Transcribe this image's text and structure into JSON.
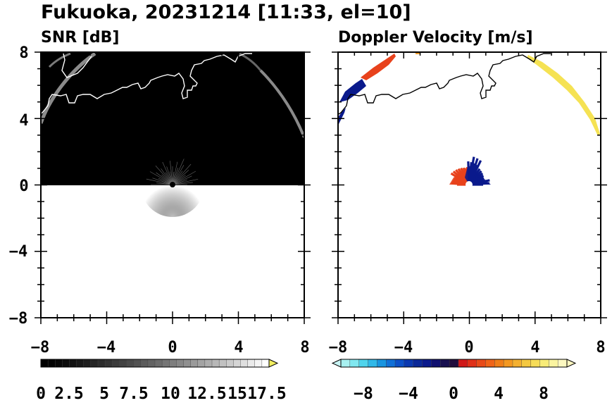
{
  "figure": {
    "title": "Fukuoka, 20231214 [11:33, el=10]"
  },
  "colors": {
    "coastline_on_dark": "#ffffff",
    "coastline_on_light": "#000000",
    "snr_background": "#000000",
    "doppler_negative": "#0a1a8c",
    "doppler_positive": "#e8421c",
    "doppler_far": "#f4e04a"
  },
  "chart_data": [
    {
      "type": "heatmap",
      "title": "SNR [dB]",
      "xlabel": "",
      "ylabel": "",
      "xlim": [
        -8,
        8
      ],
      "ylim": [
        -8,
        8
      ],
      "x_ticks": [
        "−8",
        "−4",
        "0",
        "4",
        "8"
      ],
      "y_ticks": [
        "8",
        "4",
        "0",
        "−4",
        "−8"
      ],
      "grid": false,
      "data_region": "northern half-plane (y ≥ 0) filled with low SNR, bright arc clutter",
      "colorbar": {
        "colormap": "grayscale",
        "range": [
          0,
          20
        ],
        "ticks": [
          "0",
          "2.5",
          "5",
          "7.5",
          "10",
          "12.5",
          "15",
          "17.5"
        ],
        "extend": "max"
      }
    },
    {
      "type": "heatmap",
      "title": "Doppler Velocity [m/s]",
      "xlabel": "",
      "ylabel": "",
      "xlim": [
        -8,
        8
      ],
      "ylim": [
        -8,
        8
      ],
      "x_ticks": [
        "−8",
        "−4",
        "0",
        "4",
        "8"
      ],
      "y_ticks": [],
      "grid": false,
      "colorbar": {
        "colormap": "blue-white-red-yellow diverging",
        "range": [
          -10,
          10
        ],
        "ticks": [
          "−8",
          "−4",
          "0",
          "4",
          "8"
        ],
        "extend": "both"
      }
    }
  ]
}
